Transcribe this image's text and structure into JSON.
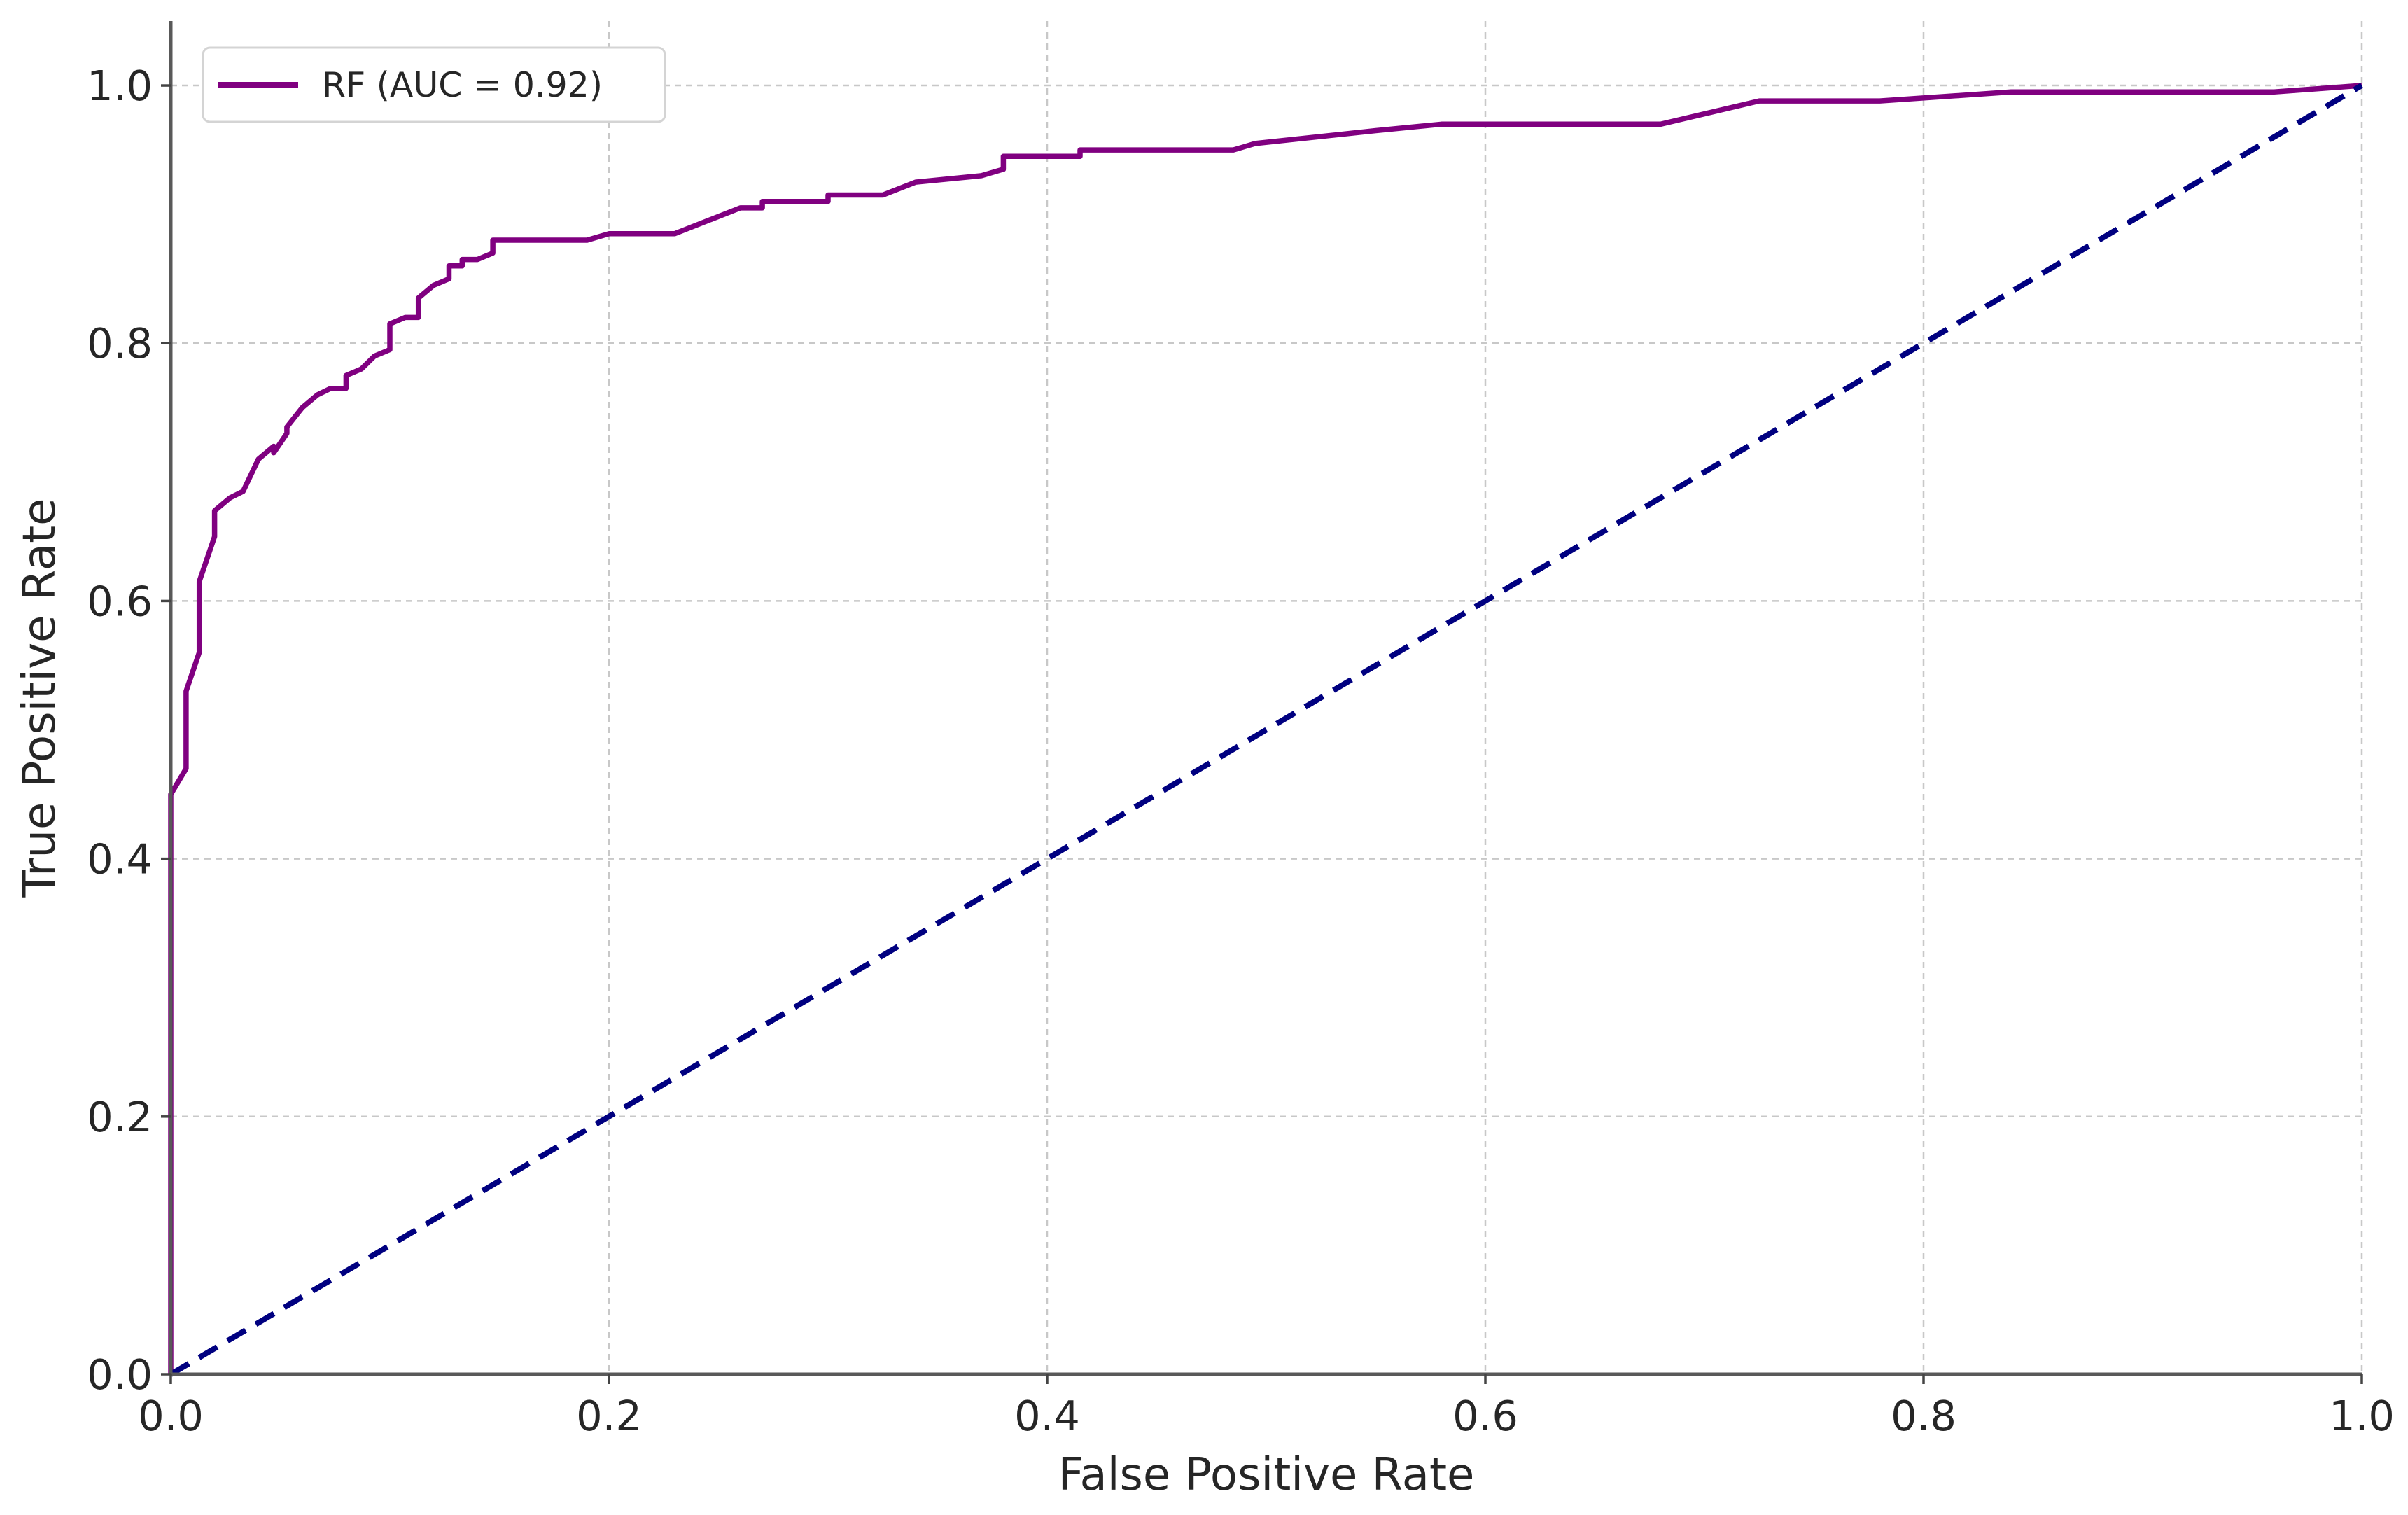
{
  "chart_data": {
    "type": "line",
    "title": "",
    "xlabel": "False Positive Rate",
    "ylabel": "True Positive Rate",
    "xlim": [
      0.0,
      1.0
    ],
    "ylim": [
      0.0,
      1.05
    ],
    "xticks": [
      0.0,
      0.2,
      0.4,
      0.6,
      0.8,
      1.0
    ],
    "yticks": [
      0.0,
      0.2,
      0.4,
      0.6,
      0.8,
      1.0
    ],
    "xtick_labels": [
      "0.0",
      "0.2",
      "0.4",
      "0.6",
      "0.8",
      "1.0"
    ],
    "ytick_labels": [
      "0.0",
      "0.2",
      "0.4",
      "0.6",
      "0.8",
      "1.0"
    ],
    "grid": true,
    "legend_position": "top-left",
    "series": [
      {
        "name": "RF (AUC = 0.92)",
        "color": "#800080",
        "style": "solid",
        "x": [
          0.0,
          0.0,
          0.0,
          0.007,
          0.007,
          0.013,
          0.013,
          0.02,
          0.02,
          0.027,
          0.033,
          0.04,
          0.047,
          0.047,
          0.053,
          0.053,
          0.06,
          0.067,
          0.073,
          0.08,
          0.08,
          0.087,
          0.093,
          0.1,
          0.1,
          0.107,
          0.113,
          0.113,
          0.12,
          0.127,
          0.127,
          0.133,
          0.133,
          0.14,
          0.147,
          0.147,
          0.16,
          0.19,
          0.2,
          0.2,
          0.23,
          0.245,
          0.26,
          0.27,
          0.27,
          0.3,
          0.3,
          0.325,
          0.34,
          0.37,
          0.38,
          0.38,
          0.41,
          0.415,
          0.415,
          0.485,
          0.495,
          0.495,
          0.55,
          0.58,
          0.68,
          0.725,
          0.78,
          0.84,
          0.96,
          1.0
        ],
        "y": [
          0.0,
          0.4,
          0.45,
          0.47,
          0.53,
          0.56,
          0.615,
          0.65,
          0.67,
          0.68,
          0.685,
          0.71,
          0.72,
          0.715,
          0.73,
          0.735,
          0.75,
          0.76,
          0.765,
          0.765,
          0.775,
          0.78,
          0.79,
          0.795,
          0.815,
          0.82,
          0.82,
          0.835,
          0.845,
          0.85,
          0.86,
          0.86,
          0.865,
          0.865,
          0.87,
          0.88,
          0.88,
          0.88,
          0.885,
          0.885,
          0.885,
          0.895,
          0.905,
          0.905,
          0.91,
          0.91,
          0.915,
          0.915,
          0.925,
          0.93,
          0.935,
          0.945,
          0.945,
          0.945,
          0.95,
          0.95,
          0.955,
          0.955,
          0.965,
          0.97,
          0.97,
          0.988,
          0.988,
          0.995,
          0.995,
          1.0
        ]
      },
      {
        "name": "",
        "color": "#000080",
        "style": "dashed",
        "x": [
          0.0,
          1.0
        ],
        "y": [
          0.0,
          1.0
        ]
      }
    ]
  }
}
